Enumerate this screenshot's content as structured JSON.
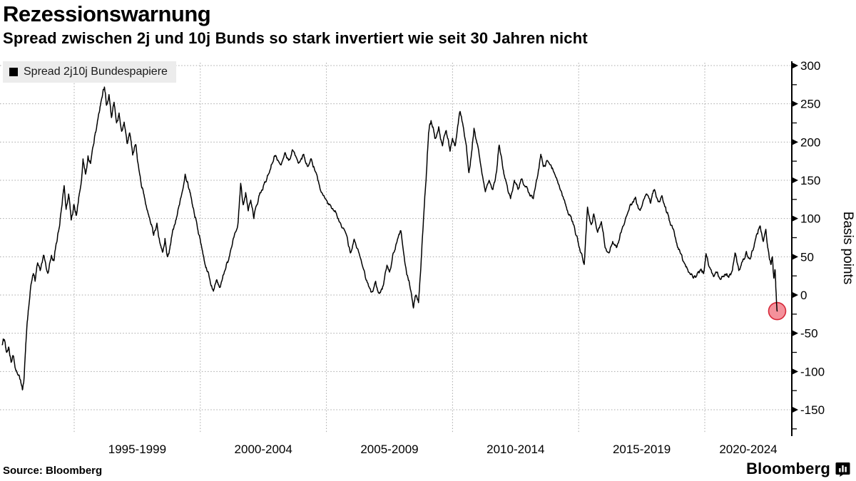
{
  "header": {
    "title": "Rezessionswarnung",
    "subtitle": "Spread zwischen 2j und 10j Bunds so stark invertiert wie seit 30 Jahren nicht"
  },
  "legend": {
    "label": "Spread 2j10j Bundespapiere",
    "swatch_color": "#000000"
  },
  "footer": {
    "source": "Source: Bloomberg",
    "brand": "Bloomberg",
    "brand_icon": "bar-chart-icon"
  },
  "chart_data": {
    "type": "line",
    "title": "Rezessionswarnung",
    "subtitle": "Spread zwischen 2j und 10j Bunds so stark invertiert wie seit 30 Jahren nicht",
    "ylabel": "Basis points",
    "xlabel": "",
    "grid": "dotted",
    "legend_position": "top-left",
    "colors": {
      "line": "#000000",
      "grid": "#a8a8a8",
      "axis": "#000000",
      "legend_bg": "#ececec",
      "marker_fill": "#f4919b",
      "marker_stroke": "#d62839"
    },
    "y_axis": {
      "min": -150,
      "max": 300,
      "major_step": 50,
      "minor_step": 25,
      "tick_labels": [
        "300",
        "250",
        "200",
        "150",
        "100",
        "50",
        "0",
        "-50",
        "-100",
        "-150"
      ]
    },
    "x_axis": {
      "gridline_years": [
        1995,
        2000,
        2005,
        2010,
        2015,
        2020
      ],
      "period_labels": [
        "1995-1999",
        "2000-2004",
        "2005-2009",
        "2010-2014",
        "2015-2019",
        "2020-2024"
      ],
      "start_year": 1992.1,
      "end_year": 2023.2
    },
    "texture_noise_bps": 4,
    "end_marker": {
      "year": 2022.87,
      "value": -21,
      "radius": 12
    },
    "series": [
      {
        "name": "Spread 2j10j Bundespapiere",
        "color": "#000000",
        "unit": "basis points",
        "points": [
          [
            1992.15,
            -65
          ],
          [
            1992.22,
            -58
          ],
          [
            1992.3,
            -72
          ],
          [
            1992.4,
            -68
          ],
          [
            1992.5,
            -88
          ],
          [
            1992.58,
            -80
          ],
          [
            1992.68,
            -98
          ],
          [
            1992.78,
            -105
          ],
          [
            1992.88,
            -112
          ],
          [
            1992.95,
            -124
          ],
          [
            1993.02,
            -105
          ],
          [
            1993.1,
            -55
          ],
          [
            1993.18,
            -20
          ],
          [
            1993.28,
            12
          ],
          [
            1993.38,
            28
          ],
          [
            1993.45,
            18
          ],
          [
            1993.55,
            42
          ],
          [
            1993.65,
            32
          ],
          [
            1993.78,
            52
          ],
          [
            1993.88,
            38
          ],
          [
            1993.98,
            30
          ],
          [
            1994.1,
            52
          ],
          [
            1994.2,
            45
          ],
          [
            1994.3,
            68
          ],
          [
            1994.42,
            90
          ],
          [
            1994.52,
            118
          ],
          [
            1994.6,
            143
          ],
          [
            1994.68,
            112
          ],
          [
            1994.78,
            132
          ],
          [
            1994.88,
            98
          ],
          [
            1994.98,
            118
          ],
          [
            1995.08,
            104
          ],
          [
            1995.18,
            128
          ],
          [
            1995.28,
            148
          ],
          [
            1995.35,
            178
          ],
          [
            1995.45,
            158
          ],
          [
            1995.55,
            182
          ],
          [
            1995.65,
            172
          ],
          [
            1995.78,
            198
          ],
          [
            1995.9,
            222
          ],
          [
            1996.0,
            240
          ],
          [
            1996.1,
            258
          ],
          [
            1996.2,
            272
          ],
          [
            1996.28,
            248
          ],
          [
            1996.38,
            262
          ],
          [
            1996.48,
            232
          ],
          [
            1996.58,
            252
          ],
          [
            1996.68,
            225
          ],
          [
            1996.78,
            238
          ],
          [
            1996.88,
            214
          ],
          [
            1996.98,
            226
          ],
          [
            1997.1,
            198
          ],
          [
            1997.2,
            212
          ],
          [
            1997.32,
            183
          ],
          [
            1997.45,
            196
          ],
          [
            1997.55,
            168
          ],
          [
            1997.68,
            140
          ],
          [
            1997.8,
            126
          ],
          [
            1997.92,
            108
          ],
          [
            1998.05,
            92
          ],
          [
            1998.15,
            78
          ],
          [
            1998.28,
            94
          ],
          [
            1998.4,
            68
          ],
          [
            1998.5,
            56
          ],
          [
            1998.6,
            74
          ],
          [
            1998.7,
            50
          ],
          [
            1998.82,
            66
          ],
          [
            1998.95,
            88
          ],
          [
            1999.1,
            108
          ],
          [
            1999.25,
            130
          ],
          [
            1999.4,
            158
          ],
          [
            1999.5,
            148
          ],
          [
            1999.6,
            134
          ],
          [
            1999.72,
            114
          ],
          [
            1999.85,
            96
          ],
          [
            2000.0,
            72
          ],
          [
            2000.12,
            52
          ],
          [
            2000.25,
            34
          ],
          [
            2000.4,
            16
          ],
          [
            2000.52,
            5
          ],
          [
            2000.65,
            20
          ],
          [
            2000.78,
            10
          ],
          [
            2000.9,
            26
          ],
          [
            2001.05,
            42
          ],
          [
            2001.2,
            58
          ],
          [
            2001.35,
            78
          ],
          [
            2001.5,
            95
          ],
          [
            2001.6,
            146
          ],
          [
            2001.7,
            118
          ],
          [
            2001.8,
            134
          ],
          [
            2001.9,
            110
          ],
          [
            2002.0,
            124
          ],
          [
            2002.12,
            100
          ],
          [
            2002.25,
            118
          ],
          [
            2002.4,
            134
          ],
          [
            2002.55,
            148
          ],
          [
            2002.7,
            158
          ],
          [
            2002.85,
            172
          ],
          [
            2003.0,
            182
          ],
          [
            2003.2,
            170
          ],
          [
            2003.35,
            186
          ],
          [
            2003.5,
            176
          ],
          [
            2003.65,
            190
          ],
          [
            2003.8,
            180
          ],
          [
            2003.95,
            174
          ],
          [
            2004.1,
            184
          ],
          [
            2004.25,
            168
          ],
          [
            2004.4,
            178
          ],
          [
            2004.55,
            162
          ],
          [
            2004.7,
            146
          ],
          [
            2004.9,
            130
          ],
          [
            2005.1,
            118
          ],
          [
            2005.3,
            110
          ],
          [
            2005.45,
            100
          ],
          [
            2005.6,
            89
          ],
          [
            2005.8,
            78
          ],
          [
            2005.95,
            55
          ],
          [
            2006.1,
            73
          ],
          [
            2006.3,
            54
          ],
          [
            2006.5,
            32
          ],
          [
            2006.65,
            15
          ],
          [
            2006.8,
            4
          ],
          [
            2006.95,
            18
          ],
          [
            2007.1,
            2
          ],
          [
            2007.25,
            12
          ],
          [
            2007.4,
            39
          ],
          [
            2007.5,
            30
          ],
          [
            2007.65,
            55
          ],
          [
            2007.8,
            70
          ],
          [
            2007.95,
            84
          ],
          [
            2008.1,
            45
          ],
          [
            2008.2,
            26
          ],
          [
            2008.3,
            13
          ],
          [
            2008.45,
            -17
          ],
          [
            2008.55,
            0
          ],
          [
            2008.65,
            -10
          ],
          [
            2008.75,
            40
          ],
          [
            2008.85,
            100
          ],
          [
            2008.95,
            150
          ],
          [
            2009.05,
            212
          ],
          [
            2009.15,
            228
          ],
          [
            2009.3,
            205
          ],
          [
            2009.45,
            220
          ],
          [
            2009.6,
            195
          ],
          [
            2009.75,
            215
          ],
          [
            2009.9,
            188
          ],
          [
            2010.0,
            205
          ],
          [
            2010.1,
            195
          ],
          [
            2010.2,
            220
          ],
          [
            2010.3,
            240
          ],
          [
            2010.4,
            225
          ],
          [
            2010.55,
            195
          ],
          [
            2010.65,
            160
          ],
          [
            2010.75,
            185
          ],
          [
            2010.85,
            218
          ],
          [
            2011.0,
            195
          ],
          [
            2011.15,
            163
          ],
          [
            2011.3,
            135
          ],
          [
            2011.45,
            150
          ],
          [
            2011.6,
            138
          ],
          [
            2011.75,
            162
          ],
          [
            2011.85,
            196
          ],
          [
            2012.0,
            165
          ],
          [
            2012.15,
            145
          ],
          [
            2012.3,
            126
          ],
          [
            2012.45,
            150
          ],
          [
            2012.6,
            138
          ],
          [
            2012.75,
            152
          ],
          [
            2012.9,
            142
          ],
          [
            2013.05,
            132
          ],
          [
            2013.2,
            126
          ],
          [
            2013.35,
            152
          ],
          [
            2013.5,
            184
          ],
          [
            2013.6,
            168
          ],
          [
            2013.75,
            176
          ],
          [
            2013.9,
            170
          ],
          [
            2014.05,
            158
          ],
          [
            2014.2,
            145
          ],
          [
            2014.35,
            130
          ],
          [
            2014.5,
            116
          ],
          [
            2014.65,
            105
          ],
          [
            2014.8,
            92
          ],
          [
            2014.95,
            75
          ],
          [
            2015.1,
            55
          ],
          [
            2015.22,
            40
          ],
          [
            2015.35,
            115
          ],
          [
            2015.5,
            92
          ],
          [
            2015.6,
            106
          ],
          [
            2015.75,
            82
          ],
          [
            2015.9,
            96
          ],
          [
            2016.05,
            62
          ],
          [
            2016.2,
            55
          ],
          [
            2016.35,
            70
          ],
          [
            2016.5,
            62
          ],
          [
            2016.65,
            80
          ],
          [
            2016.8,
            92
          ],
          [
            2016.95,
            108
          ],
          [
            2017.1,
            118
          ],
          [
            2017.25,
            128
          ],
          [
            2017.4,
            112
          ],
          [
            2017.55,
            122
          ],
          [
            2017.7,
            132
          ],
          [
            2017.85,
            120
          ],
          [
            2018.0,
            138
          ],
          [
            2018.15,
            122
          ],
          [
            2018.3,
            130
          ],
          [
            2018.45,
            115
          ],
          [
            2018.55,
            105
          ],
          [
            2018.7,
            91
          ],
          [
            2018.85,
            73
          ],
          [
            2019.0,
            59
          ],
          [
            2019.15,
            44
          ],
          [
            2019.35,
            30
          ],
          [
            2019.55,
            22
          ],
          [
            2019.7,
            28
          ],
          [
            2019.85,
            34
          ],
          [
            2019.95,
            28
          ],
          [
            2020.05,
            54
          ],
          [
            2020.2,
            36
          ],
          [
            2020.35,
            24
          ],
          [
            2020.5,
            30
          ],
          [
            2020.65,
            21
          ],
          [
            2020.8,
            27
          ],
          [
            2020.95,
            23
          ],
          [
            2021.1,
            33
          ],
          [
            2021.2,
            55
          ],
          [
            2021.35,
            32
          ],
          [
            2021.5,
            44
          ],
          [
            2021.65,
            57
          ],
          [
            2021.8,
            47
          ],
          [
            2021.95,
            63
          ],
          [
            2022.1,
            80
          ],
          [
            2022.2,
            90
          ],
          [
            2022.32,
            70
          ],
          [
            2022.42,
            86
          ],
          [
            2022.52,
            58
          ],
          [
            2022.62,
            40
          ],
          [
            2022.68,
            50
          ],
          [
            2022.74,
            22
          ],
          [
            2022.79,
            32
          ],
          [
            2022.83,
            2
          ],
          [
            2022.87,
            -21
          ]
        ]
      }
    ]
  }
}
